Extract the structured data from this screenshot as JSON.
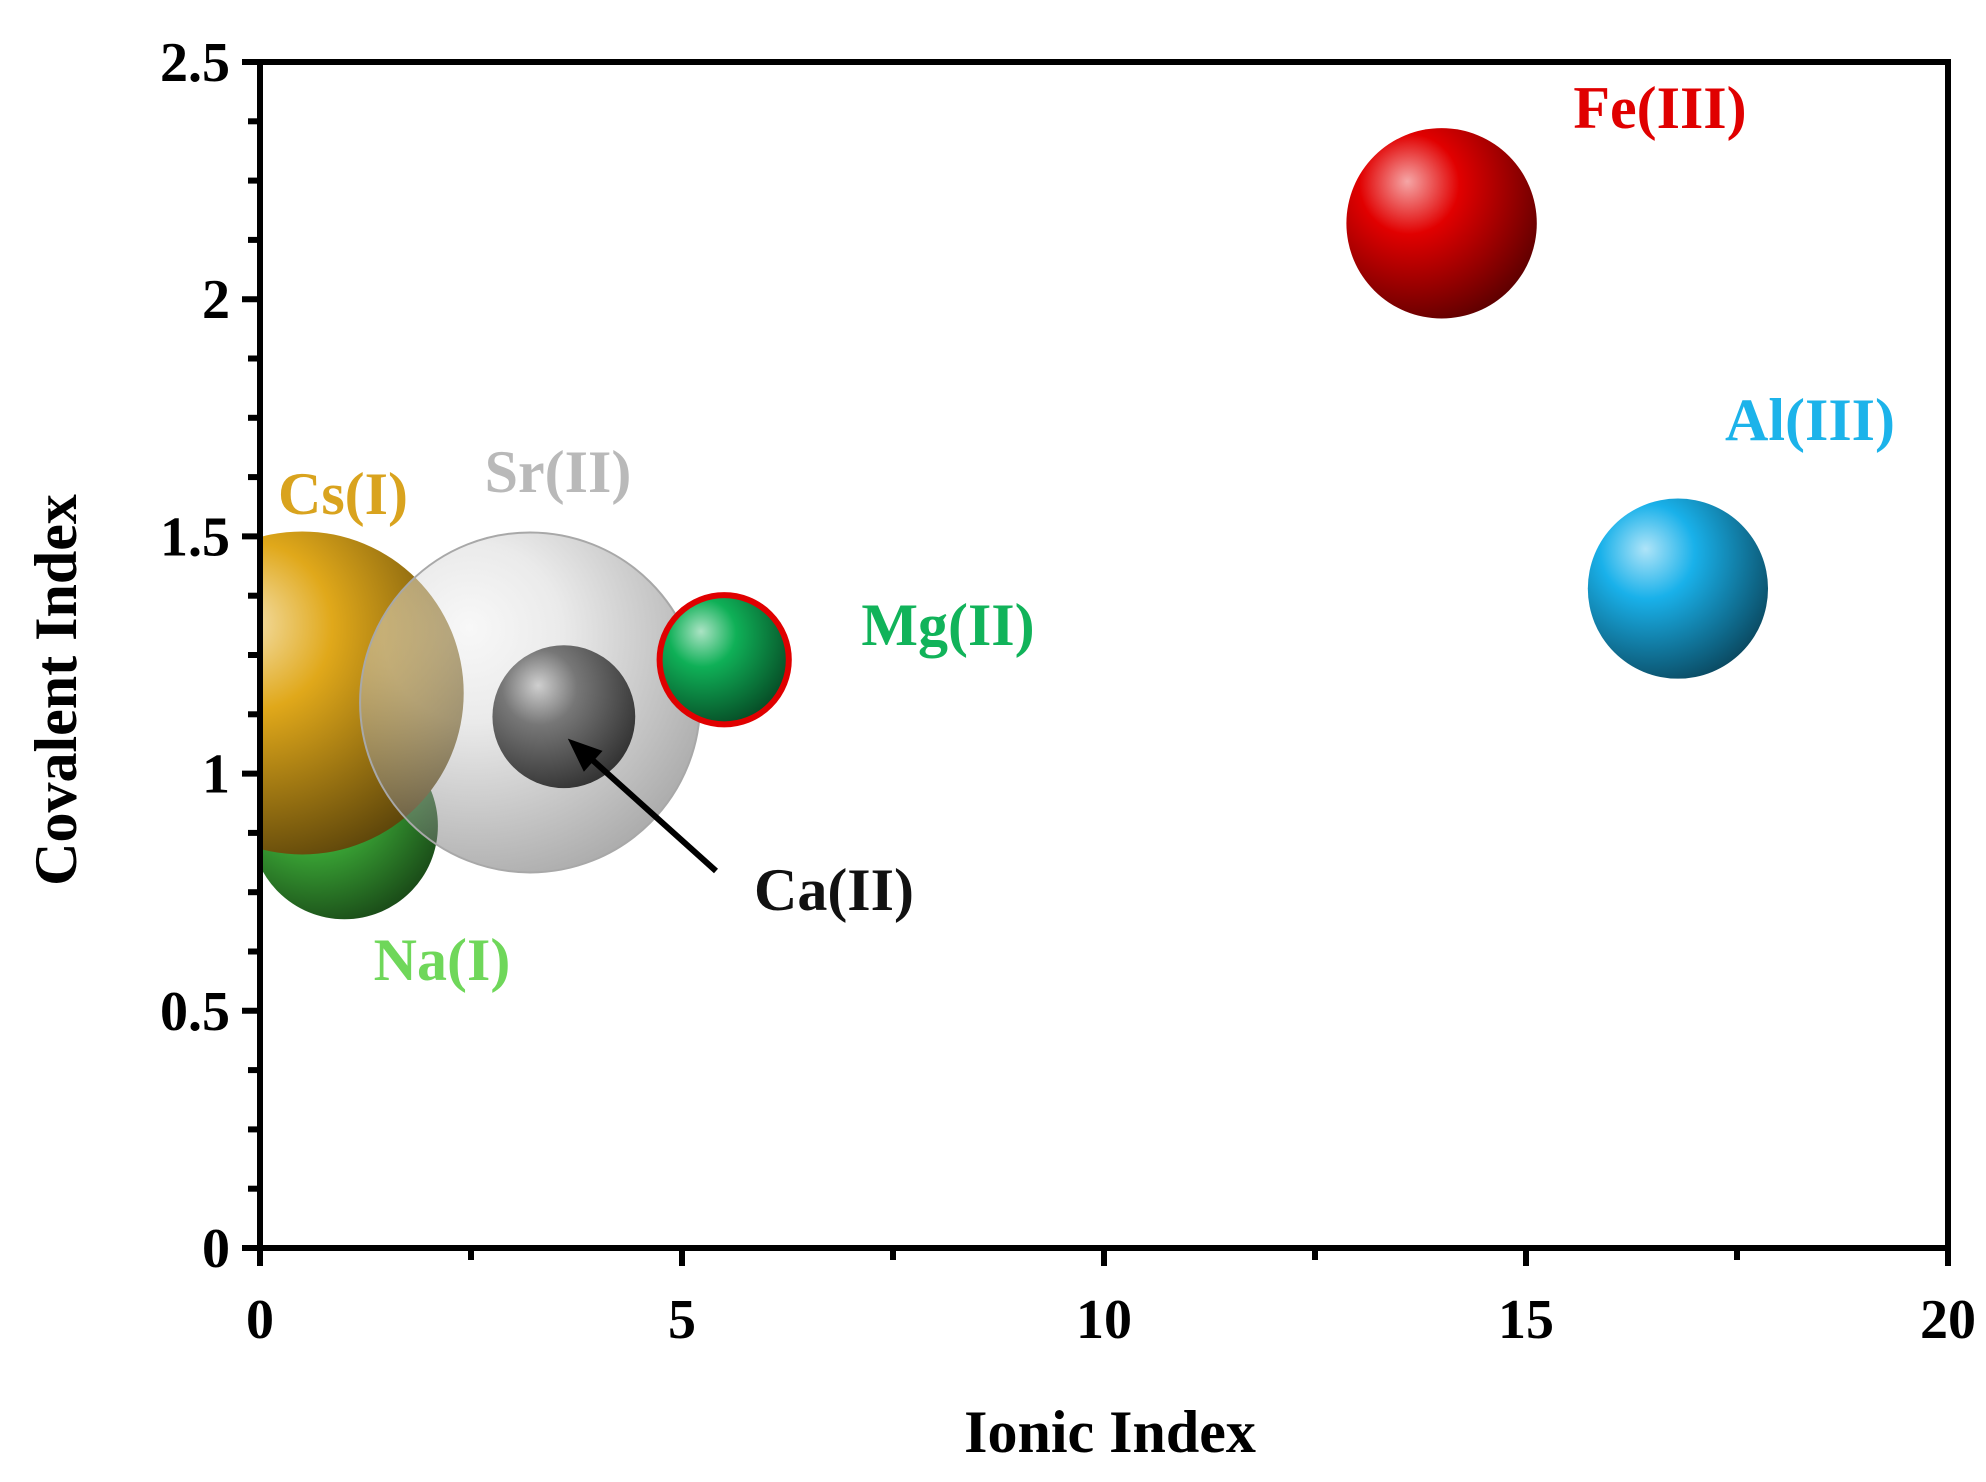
{
  "chart_data": {
    "type": "scatter",
    "title": "",
    "xlabel": "Ionic Index",
    "ylabel": "Covalent Index",
    "xlim": [
      0,
      20
    ],
    "ylim": [
      0,
      2.5
    ],
    "x_ticks": [
      0,
      5,
      10,
      15,
      20
    ],
    "y_ticks": [
      0,
      0.5,
      1,
      1.5,
      2,
      2.5
    ],
    "x_tick_labels": [
      "0",
      "5",
      "10",
      "15",
      "20"
    ],
    "y_tick_labels": [
      "0",
      "0.5",
      "1",
      "1.5",
      "2",
      "2.5"
    ],
    "grid": false,
    "legend": "none",
    "points": [
      {
        "label": "Na(I)",
        "x": 1.0,
        "y": 0.89,
        "color": "#3fb43a",
        "label_color": "#6fd75a",
        "relative_size": 0.55
      },
      {
        "label": "Cs(I)",
        "x": 0.5,
        "y": 1.17,
        "color": "#e0a81a",
        "label_color": "#d9a31e",
        "relative_size": 0.95
      },
      {
        "label": "Sr(II)",
        "x": 3.2,
        "y": 1.15,
        "color": "#d6d6d6",
        "label_color": "#b9b9b9",
        "relative_size": 1.0,
        "translucent": true
      },
      {
        "label": "Ca(II)",
        "x": 3.6,
        "y": 1.12,
        "color": "#777777",
        "label_color": "#111111",
        "relative_size": 0.42
      },
      {
        "label": "Mg(II)",
        "x": 5.5,
        "y": 1.24,
        "color": "#0fb057",
        "label_color": "#11b35a",
        "relative_size": 0.38,
        "outline": "#e00000"
      },
      {
        "label": "Fe(III)",
        "x": 14.0,
        "y": 2.16,
        "color": "#e10000",
        "label_color": "#e00000",
        "relative_size": 0.56
      },
      {
        "label": "Al(III)",
        "x": 16.8,
        "y": 1.39,
        "color": "#19b1ea",
        "label_color": "#1cb3ea",
        "relative_size": 0.53
      }
    ]
  }
}
